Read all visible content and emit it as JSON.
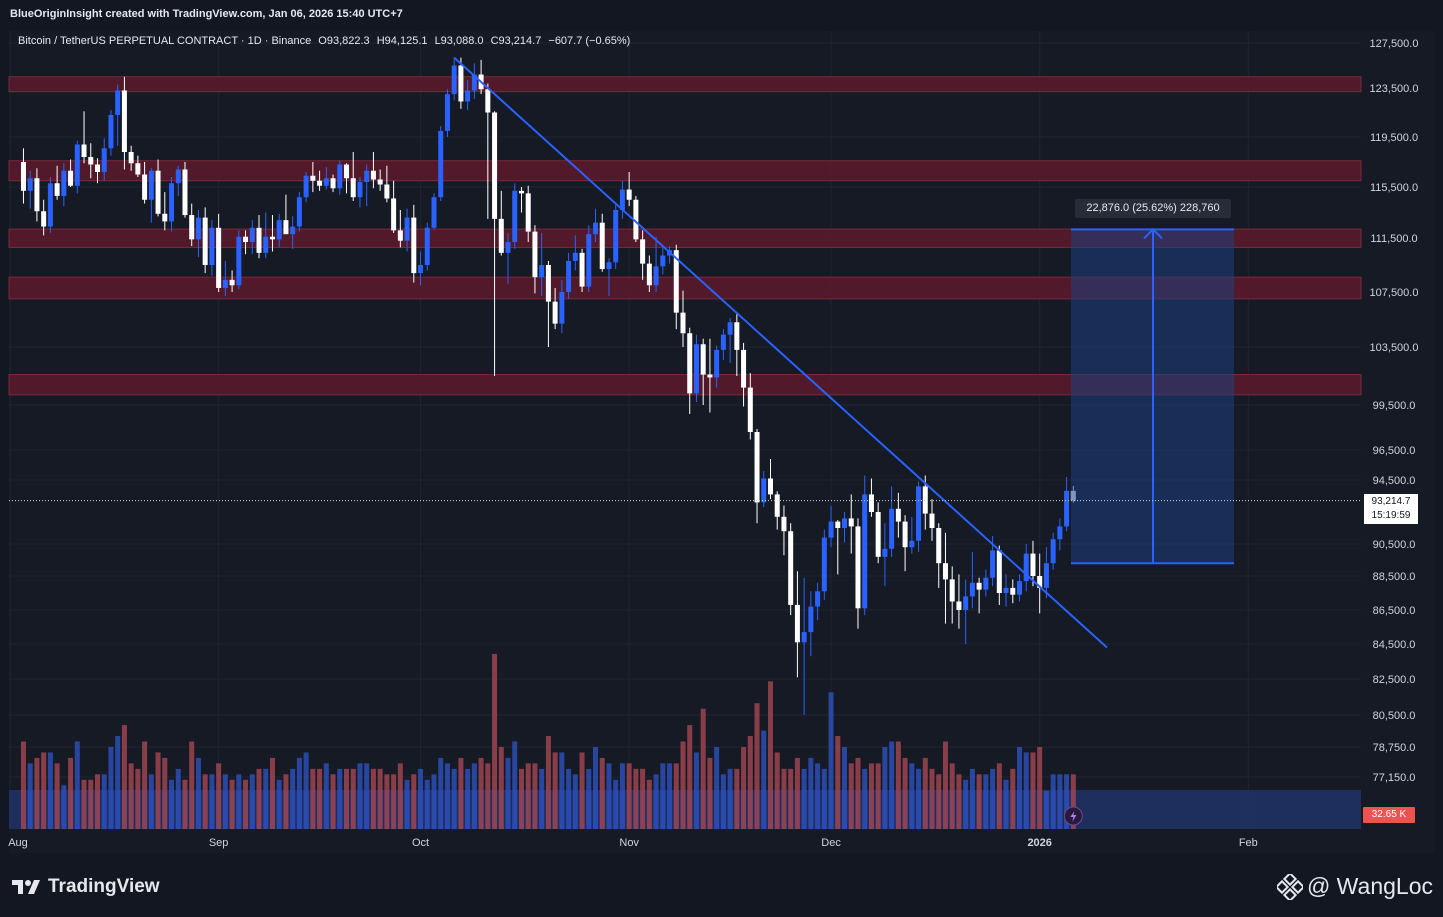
{
  "caption": "BlueOriginInsight created with TradingView.com, Jan 06, 2026 15:40 UTC+7",
  "symbol": {
    "name": "Bitcoin / TetherUS PERPETUAL CONTRACT · 1D · Binance",
    "open": "O93,822.3",
    "high": "H94,125.1",
    "low": "L93,088.0",
    "close": "C93,214.7",
    "change": "−607.7 (−0.65%)"
  },
  "measure_label": "22,876.0 (25.62%) 228,760",
  "current_price": "93,214.7",
  "countdown": "15:19:59",
  "volume_label": "32.65 K",
  "brand": "TradingView",
  "author_watermark": "@ WangLoc",
  "colors": {
    "background": "#131722",
    "bull": "#2962ff",
    "bear": "#ffffff",
    "resistance_zone": "#5c1a2a",
    "trendline": "#2962ff",
    "measure_fill": "#1e3f80"
  },
  "chart_data": {
    "type": "candlestick",
    "y_axis_labels": [
      "127,500.0",
      "123,500.0",
      "119,500.0",
      "115,500.0",
      "111,500.0",
      "107,500.0",
      "103,500.0",
      "99,500.0",
      "96,500.0",
      "94,500.0",
      "90,500.0",
      "88,500.0",
      "86,500.0",
      "84,500.0",
      "82,500.0",
      "80,500.0",
      "78,750.0",
      "77,150.0"
    ],
    "x_axis_labels": [
      "Aug",
      "Sep",
      "Oct",
      "Nov",
      "Dec",
      "2026",
      "Feb"
    ],
    "resistance_zones": [
      [
        123200,
        124500
      ],
      [
        116000,
        117600
      ],
      [
        110800,
        112200
      ],
      [
        107000,
        108600
      ],
      [
        100200,
        101600
      ]
    ],
    "trendline": {
      "from": {
        "date": "2025-10-06",
        "price": 126200
      },
      "to": {
        "date": "2026-01-11",
        "price": 84300
      }
    },
    "measure": {
      "from_price": 89300,
      "to_price": 112176,
      "change": 22876,
      "change_pct": 25.62
    },
    "candles": [
      [
        117500,
        118600,
        114200,
        115200
      ],
      [
        115200,
        116800,
        113800,
        116200
      ],
      [
        116200,
        117000,
        112800,
        113600
      ],
      [
        113600,
        114500,
        111700,
        112400
      ],
      [
        112400,
        116300,
        111900,
        115800
      ],
      [
        115800,
        117200,
        114500,
        114800
      ],
      [
        114800,
        117400,
        114000,
        116800
      ],
      [
        116800,
        117700,
        115500,
        115600
      ],
      [
        115600,
        119200,
        115000,
        118900
      ],
      [
        118900,
        121600,
        117400,
        117900
      ],
      [
        117900,
        119000,
        116200,
        117300
      ],
      [
        117300,
        117800,
        115800,
        116700
      ],
      [
        116700,
        119400,
        116000,
        118600
      ],
      [
        118600,
        121700,
        118000,
        121300
      ],
      [
        121300,
        123800,
        118800,
        123300
      ],
      [
        123300,
        124500,
        116900,
        118300
      ],
      [
        118300,
        118800,
        116800,
        117400
      ],
      [
        117400,
        118000,
        116300,
        116500
      ],
      [
        116500,
        117500,
        114200,
        114500
      ],
      [
        114500,
        117000,
        112700,
        116800
      ],
      [
        116800,
        117700,
        113200,
        113400
      ],
      [
        113400,
        115100,
        112100,
        112800
      ],
      [
        112800,
        116300,
        112000,
        115800
      ],
      [
        115800,
        117200,
        114800,
        116900
      ],
      [
        116900,
        117500,
        113100,
        113300
      ],
      [
        113300,
        114200,
        110900,
        111400
      ],
      [
        111400,
        113700,
        110100,
        113100
      ],
      [
        113100,
        113900,
        108900,
        109500
      ],
      [
        109500,
        112900,
        108700,
        112300
      ],
      [
        112300,
        113400,
        107500,
        107800
      ],
      [
        107800,
        109800,
        107200,
        108400
      ],
      [
        108400,
        109100,
        107500,
        108000
      ],
      [
        108000,
        112100,
        107700,
        111600
      ],
      [
        111600,
        112100,
        110300,
        111200
      ],
      [
        111200,
        112900,
        110300,
        112300
      ],
      [
        112300,
        113300,
        110000,
        110400
      ],
      [
        110400,
        113500,
        110000,
        111600
      ],
      [
        111600,
        113300,
        110500,
        111400
      ],
      [
        111400,
        113400,
        110800,
        112900
      ],
      [
        112900,
        114900,
        111900,
        111800
      ],
      [
        111800,
        113200,
        110700,
        112400
      ],
      [
        112400,
        115100,
        112000,
        114700
      ],
      [
        114700,
        116700,
        114300,
        116400
      ],
      [
        116400,
        117500,
        115100,
        116000
      ],
      [
        116000,
        116800,
        115200,
        115600
      ],
      [
        115600,
        117100,
        115300,
        116200
      ],
      [
        116200,
        116500,
        115100,
        115400
      ],
      [
        115400,
        117600,
        114900,
        117300
      ],
      [
        117300,
        117400,
        115000,
        116200
      ],
      [
        116200,
        118300,
        114400,
        114700
      ],
      [
        114700,
        116300,
        113900,
        115900
      ],
      [
        115900,
        117300,
        114000,
        116800
      ],
      [
        116800,
        118300,
        115400,
        116100
      ],
      [
        116100,
        116900,
        115200,
        115700
      ],
      [
        115700,
        117200,
        114300,
        114600
      ],
      [
        114600,
        116000,
        111900,
        112100
      ],
      [
        112100,
        113700,
        110800,
        111300
      ],
      [
        111300,
        113800,
        110500,
        113100
      ],
      [
        113100,
        114100,
        108200,
        108900
      ],
      [
        108900,
        110500,
        108000,
        109500
      ],
      [
        109500,
        112700,
        109100,
        112300
      ],
      [
        112300,
        115000,
        112200,
        114700
      ],
      [
        114700,
        120400,
        114400,
        120000
      ],
      [
        120000,
        123400,
        119500,
        123000
      ],
      [
        123000,
        126200,
        122500,
        125500
      ],
      [
        125500,
        126200,
        121800,
        122400
      ],
      [
        122400,
        124200,
        121700,
        123300
      ],
      [
        123300,
        125700,
        122600,
        124700
      ],
      [
        124700,
        126000,
        123000,
        123400
      ],
      [
        123400,
        123900,
        113000,
        121500
      ],
      [
        121500,
        121600,
        101500,
        113000
      ],
      [
        113000,
        115200,
        110200,
        110400
      ],
      [
        110400,
        111900,
        108100,
        111200
      ],
      [
        111200,
        115800,
        110700,
        115200
      ],
      [
        115200,
        115500,
        113500,
        115000
      ],
      [
        115000,
        115600,
        111200,
        112000
      ],
      [
        112000,
        112500,
        107400,
        108600
      ],
      [
        108600,
        111900,
        107200,
        109500
      ],
      [
        109500,
        109800,
        103500,
        106800
      ],
      [
        106800,
        107800,
        104800,
        105200
      ],
      [
        105200,
        108400,
        104500,
        107500
      ],
      [
        107500,
        110400,
        107000,
        109800
      ],
      [
        109800,
        111700,
        109100,
        110400
      ],
      [
        110400,
        110700,
        107500,
        107900
      ],
      [
        107900,
        112500,
        107500,
        111800
      ],
      [
        111800,
        113800,
        111200,
        112700
      ],
      [
        112700,
        113400,
        109000,
        109200
      ],
      [
        109200,
        110000,
        107200,
        109700
      ],
      [
        109700,
        114100,
        109200,
        113700
      ],
      [
        113700,
        116000,
        113000,
        115300
      ],
      [
        115300,
        116700,
        114000,
        114500
      ],
      [
        114500,
        114800,
        111200,
        111400
      ],
      [
        111400,
        112100,
        108400,
        109600
      ],
      [
        109600,
        110200,
        107500,
        108000
      ],
      [
        108000,
        111600,
        107500,
        109400
      ],
      [
        109400,
        110800,
        108800,
        110200
      ],
      [
        110200,
        110900,
        109600,
        110600
      ],
      [
        110600,
        111000,
        104800,
        106000
      ],
      [
        106000,
        107600,
        103500,
        104500
      ],
      [
        104500,
        104900,
        98900,
        100300
      ],
      [
        100300,
        104400,
        99700,
        103700
      ],
      [
        103700,
        104100,
        99500,
        101600
      ],
      [
        101600,
        104100,
        99000,
        101400
      ],
      [
        101400,
        103600,
        100700,
        103300
      ],
      [
        103300,
        104800,
        102600,
        104400
      ],
      [
        104400,
        105600,
        102400,
        105300
      ],
      [
        105300,
        105900,
        101500,
        103300
      ],
      [
        103300,
        103800,
        99400,
        100700
      ],
      [
        100700,
        101700,
        97200,
        97700
      ],
      [
        97700,
        97900,
        91800,
        93100
      ],
      [
        93100,
        95100,
        92800,
        94600
      ],
      [
        94600,
        95900,
        93300,
        93600
      ],
      [
        93600,
        93800,
        91400,
        92200
      ],
      [
        92200,
        92900,
        89800,
        91300
      ],
      [
        91300,
        91800,
        86200,
        86800
      ],
      [
        86800,
        88800,
        82600,
        84600
      ],
      [
        84600,
        88400,
        80500,
        85200
      ],
      [
        85200,
        87600,
        83800,
        86700
      ],
      [
        86700,
        88100,
        85900,
        87600
      ],
      [
        87600,
        91400,
        87100,
        90900
      ],
      [
        90900,
        92900,
        90300,
        91900
      ],
      [
        91900,
        92000,
        88600,
        91500
      ],
      [
        91500,
        92500,
        90600,
        92100
      ],
      [
        92100,
        93600,
        89900,
        91600
      ],
      [
        91600,
        92100,
        85400,
        86600
      ],
      [
        86600,
        94800,
        86200,
        93600
      ],
      [
        93600,
        94600,
        92200,
        92500
      ],
      [
        92500,
        93100,
        89300,
        89700
      ],
      [
        89700,
        91800,
        87900,
        90200
      ],
      [
        90200,
        94100,
        89700,
        92700
      ],
      [
        92700,
        93700,
        90900,
        91900
      ],
      [
        91900,
        92300,
        88800,
        90300
      ],
      [
        90300,
        92200,
        89900,
        90700
      ],
      [
        90700,
        94400,
        90000,
        94100
      ],
      [
        94100,
        94800,
        91400,
        92400
      ],
      [
        92400,
        93300,
        90700,
        91500
      ],
      [
        91500,
        91800,
        87800,
        89300
      ],
      [
        89300,
        91200,
        85700,
        88300
      ],
      [
        88300,
        89100,
        85700,
        87000
      ],
      [
        87000,
        88600,
        85400,
        86500
      ],
      [
        86500,
        88300,
        84500,
        87300
      ],
      [
        87300,
        90000,
        86600,
        88100
      ],
      [
        88100,
        88400,
        86300,
        87700
      ],
      [
        87700,
        88900,
        87300,
        88400
      ],
      [
        88400,
        91000,
        87900,
        90100
      ],
      [
        90100,
        90400,
        86800,
        87500
      ],
      [
        87500,
        88600,
        86700,
        87800
      ],
      [
        87800,
        88300,
        86900,
        87400
      ],
      [
        87400,
        88600,
        87000,
        88200
      ],
      [
        88200,
        90500,
        87600,
        89900
      ],
      [
        89900,
        90700,
        87900,
        88500
      ],
      [
        88500,
        89900,
        86300,
        87800
      ],
      [
        87800,
        90300,
        87200,
        89300
      ],
      [
        89300,
        91200,
        88900,
        90800
      ],
      [
        90800,
        92100,
        90100,
        91600
      ],
      [
        91600,
        94700,
        91300,
        93822.3
      ],
      [
        93822.3,
        94125.1,
        93088,
        93214.7
      ]
    ],
    "volumes": [
      0.8,
      0.6,
      0.65,
      0.7,
      0.7,
      0.6,
      0.4,
      0.65,
      0.8,
      0.45,
      0.45,
      0.5,
      0.5,
      0.75,
      0.85,
      0.95,
      0.6,
      0.55,
      0.8,
      0.5,
      0.7,
      0.65,
      0.45,
      0.55,
      0.45,
      0.8,
      0.65,
      0.5,
      0.5,
      0.6,
      0.5,
      0.45,
      0.5,
      0.45,
      0.5,
      0.55,
      0.55,
      0.65,
      0.45,
      0.5,
      0.55,
      0.65,
      0.7,
      0.55,
      0.55,
      0.6,
      0.5,
      0.55,
      0.55,
      0.55,
      0.6,
      0.6,
      0.55,
      0.55,
      0.5,
      0.5,
      0.6,
      0.45,
      0.5,
      0.55,
      0.45,
      0.5,
      0.65,
      0.6,
      0.55,
      0.65,
      0.55,
      0.6,
      0.65,
      0.6,
      1.6,
      0.75,
      0.65,
      0.8,
      0.55,
      0.6,
      0.6,
      0.55,
      0.85,
      0.7,
      0.7,
      0.55,
      0.5,
      0.7,
      0.55,
      0.75,
      0.65,
      0.6,
      0.45,
      0.6,
      0.6,
      0.55,
      0.55,
      0.45,
      0.5,
      0.6,
      0.6,
      0.6,
      0.8,
      0.95,
      0.7,
      1.1,
      0.65,
      0.75,
      0.5,
      0.55,
      0.55,
      0.75,
      0.85,
      1.15,
      0.9,
      1.35,
      0.7,
      0.55,
      0.55,
      0.65,
      0.55,
      0.65,
      0.6,
      0.55,
      1.25,
      0.85,
      0.75,
      0.6,
      0.65,
      0.55,
      0.6,
      0.6,
      0.75,
      0.8,
      0.8,
      0.65,
      0.6,
      0.55,
      0.65,
      0.55,
      0.5,
      0.8,
      0.6,
      0.5,
      0.45,
      0.55,
      0.5,
      0.5,
      0.55,
      0.6,
      0.45,
      0.55,
      0.75,
      0.7,
      0.7,
      0.75,
      0.35
    ]
  }
}
